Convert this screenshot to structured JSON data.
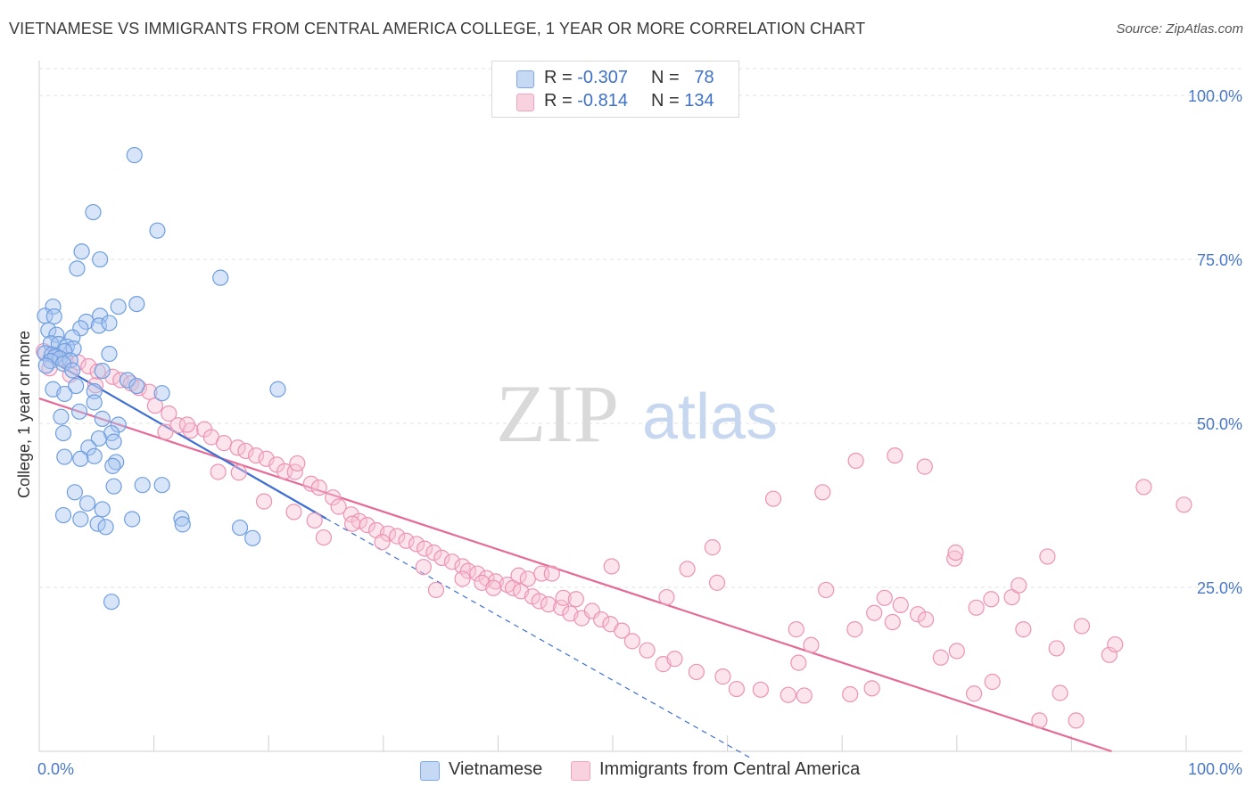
{
  "header": {
    "title": "VIETNAMESE VS IMMIGRANTS FROM CENTRAL AMERICA COLLEGE, 1 YEAR OR MORE CORRELATION CHART",
    "source": "Source: ZipAtlas.com"
  },
  "watermark": {
    "zip": "ZIP",
    "atlas": "atlas"
  },
  "legend_top": {
    "rows": [
      {
        "r_label": "R =",
        "r_value": "-0.307",
        "n_label": "N =",
        "n_value": "78",
        "color": "#7fa8e8"
      },
      {
        "r_label": "R =",
        "r_value": "-0.814",
        "n_label": "N =",
        "n_value": "134",
        "color": "#f0a3be"
      }
    ]
  },
  "legend_bottom": {
    "items": [
      {
        "label": "Vietnamese",
        "color": "#7fa8e8"
      },
      {
        "label": "Immigrants from Central America",
        "color": "#f0a3be"
      }
    ]
  },
  "colors": {
    "blue_fill": "#a9c6f0",
    "blue_stroke": "#6f9ee0",
    "blue_line": "#3f6fd1",
    "pink_fill": "#f6c4d4",
    "pink_stroke": "#ec93b3",
    "pink_line": "#e56a96",
    "grid": "#e2e2e2",
    "tick_text": "#4a78c9"
  },
  "chart_data": {
    "type": "scatter",
    "title": "VIETNAMESE VS IMMIGRANTS FROM CENTRAL AMERICA COLLEGE, 1 YEAR OR MORE CORRELATION CHART",
    "xlabel": "",
    "ylabel": "College, 1 year or more",
    "xlim": [
      0,
      100
    ],
    "ylim": [
      0,
      100
    ],
    "x_tick_labels": [
      "0.0%",
      "100.0%"
    ],
    "y_tick_labels": [
      {
        "value": 100,
        "label": "100.0%"
      },
      {
        "value": 75,
        "label": "75.0%"
      },
      {
        "value": 50,
        "label": "50.0%"
      },
      {
        "value": 25,
        "label": "25.0%"
      }
    ],
    "grid": true,
    "legend_position": "bottom",
    "series": [
      {
        "name": "Vietnamese",
        "r": -0.307,
        "n": 78,
        "trend": {
          "x": [
            0.3,
            25
          ],
          "y": [
            60.3,
            35.5
          ],
          "dashed_extension": {
            "x": [
              25,
              62
            ],
            "y": [
              35.5,
              -1
            ]
          }
        },
        "points": [
          [
            8.3,
            90.9
          ],
          [
            4.7,
            82.2
          ],
          [
            10.3,
            79.4
          ],
          [
            3.7,
            76.2
          ],
          [
            5.3,
            75
          ],
          [
            3.3,
            73.6
          ],
          [
            15.8,
            72.2
          ],
          [
            1.2,
            67.8
          ],
          [
            6.9,
            67.8
          ],
          [
            8.5,
            68.2
          ],
          [
            0.5,
            66.4
          ],
          [
            1.3,
            66.3
          ],
          [
            5.3,
            66.4
          ],
          [
            4.1,
            65.5
          ],
          [
            5.2,
            64.9
          ],
          [
            6.1,
            65.3
          ],
          [
            3.6,
            64.5
          ],
          [
            0.8,
            64.2
          ],
          [
            1.5,
            63.5
          ],
          [
            2.9,
            63.1
          ],
          [
            1.0,
            62.2
          ],
          [
            1.7,
            62.1
          ],
          [
            2.4,
            61.7
          ],
          [
            3.0,
            61.4
          ],
          [
            2.2,
            61
          ],
          [
            0.5,
            60.7
          ],
          [
            1.1,
            60.5
          ],
          [
            6.1,
            60.6
          ],
          [
            1.4,
            60.2
          ],
          [
            1.8,
            59.9
          ],
          [
            2.7,
            59.6
          ],
          [
            1.0,
            59.5
          ],
          [
            2.1,
            59.1
          ],
          [
            0.6,
            58.8
          ],
          [
            2.9,
            58.1
          ],
          [
            5.5,
            58
          ],
          [
            7.7,
            56.6
          ],
          [
            3.2,
            55.7
          ],
          [
            1.2,
            55.2
          ],
          [
            8.5,
            55.7
          ],
          [
            20.8,
            55.2
          ],
          [
            4.8,
            54.9
          ],
          [
            10.7,
            54.6
          ],
          [
            2.2,
            54.5
          ],
          [
            4.8,
            53.2
          ],
          [
            3.5,
            51.8
          ],
          [
            1.9,
            51
          ],
          [
            5.5,
            50.7
          ],
          [
            6.9,
            49.8
          ],
          [
            6.3,
            48.5
          ],
          [
            2.1,
            48.5
          ],
          [
            5.2,
            47.7
          ],
          [
            6.5,
            47.2
          ],
          [
            4.3,
            46.3
          ],
          [
            4.8,
            45
          ],
          [
            2.2,
            44.9
          ],
          [
            3.6,
            44.6
          ],
          [
            6.7,
            44.1
          ],
          [
            6.4,
            43.5
          ],
          [
            9.0,
            40.6
          ],
          [
            10.7,
            40.6
          ],
          [
            6.5,
            40.4
          ],
          [
            3.1,
            39.5
          ],
          [
            4.2,
            37.8
          ],
          [
            5.5,
            36.9
          ],
          [
            2.1,
            36
          ],
          [
            3.6,
            35.4
          ],
          [
            8.1,
            35.4
          ],
          [
            12.4,
            35.5
          ],
          [
            5.1,
            34.7
          ],
          [
            5.8,
            34.2
          ],
          [
            12.5,
            34.6
          ],
          [
            17.5,
            34.1
          ],
          [
            18.6,
            32.5
          ],
          [
            6.3,
            22.8
          ]
        ]
      },
      {
        "name": "Immigrants from Central America",
        "r": -0.814,
        "n": 134,
        "trend": {
          "x": [
            0,
            93.5
          ],
          "y": [
            53.8,
            0
          ]
        },
        "points": [
          [
            0.4,
            61
          ],
          [
            1.4,
            60.4
          ],
          [
            2.3,
            59.7
          ],
          [
            3.4,
            59.3
          ],
          [
            4.3,
            58.7
          ],
          [
            5.1,
            57.9
          ],
          [
            6.4,
            57.1
          ],
          [
            7.1,
            56.6
          ],
          [
            8.0,
            56.1
          ],
          [
            8.7,
            55.4
          ],
          [
            9.6,
            54.8
          ],
          [
            0.9,
            58.4
          ],
          [
            2.7,
            57.4
          ],
          [
            4.9,
            55.8
          ],
          [
            10.1,
            52.7
          ],
          [
            11.3,
            51.5
          ],
          [
            12.1,
            49.7
          ],
          [
            13.2,
            48.9
          ],
          [
            11.0,
            48.7
          ],
          [
            12.9,
            49.8
          ],
          [
            14.4,
            49.1
          ],
          [
            15.0,
            47.9
          ],
          [
            16.1,
            47
          ],
          [
            17.3,
            46.3
          ],
          [
            18.0,
            45.8
          ],
          [
            18.9,
            45.1
          ],
          [
            19.8,
            44.6
          ],
          [
            20.7,
            43.7
          ],
          [
            21.4,
            42.7
          ],
          [
            22.3,
            42.6
          ],
          [
            22.5,
            43.9
          ],
          [
            15.6,
            42.6
          ],
          [
            17.4,
            42.5
          ],
          [
            19.6,
            38.1
          ],
          [
            23.7,
            40.8
          ],
          [
            24.4,
            40.2
          ],
          [
            25.6,
            38.7
          ],
          [
            26.1,
            37.3
          ],
          [
            27.2,
            36.1
          ],
          [
            27.9,
            35.1
          ],
          [
            28.6,
            34.5
          ],
          [
            29.4,
            33.7
          ],
          [
            30.4,
            33.2
          ],
          [
            31.2,
            32.8
          ],
          [
            32.0,
            32.1
          ],
          [
            32.9,
            31.6
          ],
          [
            33.6,
            30.9
          ],
          [
            34.4,
            30.3
          ],
          [
            35.1,
            29.5
          ],
          [
            36.0,
            28.9
          ],
          [
            36.9,
            28.2
          ],
          [
            37.4,
            27.5
          ],
          [
            38.2,
            27.1
          ],
          [
            39.0,
            26.4
          ],
          [
            39.8,
            25.9
          ],
          [
            40.8,
            25.4
          ],
          [
            41.3,
            24.9
          ],
          [
            42.0,
            24.4
          ],
          [
            43.0,
            23.6
          ],
          [
            43.6,
            22.9
          ],
          [
            44.4,
            22.4
          ],
          [
            45.5,
            21.9
          ],
          [
            46.3,
            21
          ],
          [
            47.3,
            20.3
          ],
          [
            24.0,
            35.2
          ],
          [
            22.2,
            36.5
          ],
          [
            24.8,
            32.6
          ],
          [
            27.3,
            34.7
          ],
          [
            29.9,
            31.9
          ],
          [
            33.5,
            28.1
          ],
          [
            34.6,
            24.6
          ],
          [
            36.9,
            26.3
          ],
          [
            38.6,
            25.7
          ],
          [
            39.6,
            24.9
          ],
          [
            41.8,
            26.8
          ],
          [
            42.6,
            26.3
          ],
          [
            43.8,
            27.1
          ],
          [
            44.7,
            27.1
          ],
          [
            45.7,
            23.4
          ],
          [
            46.8,
            23.2
          ],
          [
            48.2,
            21.4
          ],
          [
            49.0,
            20.1
          ],
          [
            49.8,
            19.4
          ],
          [
            50.8,
            18.4
          ],
          [
            51.7,
            16.8
          ],
          [
            53.0,
            15.4
          ],
          [
            54.4,
            13.3
          ],
          [
            55.4,
            14.1
          ],
          [
            57.3,
            12.1
          ],
          [
            59.6,
            11.4
          ],
          [
            60.8,
            9.5
          ],
          [
            62.9,
            9.4
          ],
          [
            65.3,
            8.6
          ],
          [
            66.7,
            8.5
          ],
          [
            67.3,
            16.2
          ],
          [
            66.2,
            13.5
          ],
          [
            70.7,
            8.7
          ],
          [
            72.6,
            9.6
          ],
          [
            80.0,
            15.3
          ],
          [
            87.2,
            4.7
          ],
          [
            88.7,
            15.7
          ],
          [
            66.0,
            18.6
          ],
          [
            68.6,
            24.6
          ],
          [
            71.1,
            18.6
          ],
          [
            72.8,
            21.1
          ],
          [
            73.7,
            23.4
          ],
          [
            74.4,
            19.7
          ],
          [
            75.1,
            22.3
          ],
          [
            76.6,
            20.9
          ],
          [
            77.3,
            20.1
          ],
          [
            78.6,
            14.3
          ],
          [
            79.8,
            29.4
          ],
          [
            81.5,
            8.8
          ],
          [
            83.1,
            10.6
          ],
          [
            84.8,
            23.5
          ],
          [
            85.4,
            25.3
          ],
          [
            89.0,
            8.9
          ],
          [
            90.4,
            4.7
          ],
          [
            54.7,
            23.5
          ],
          [
            56.5,
            27.8
          ],
          [
            58.7,
            31.1
          ],
          [
            49.9,
            28.2
          ],
          [
            59.1,
            25.7
          ],
          [
            64.0,
            38.5
          ],
          [
            71.2,
            44.3
          ],
          [
            74.6,
            45.1
          ],
          [
            77.2,
            43.4
          ],
          [
            68.3,
            39.5
          ],
          [
            87.9,
            29.7
          ],
          [
            93.3,
            14.7
          ],
          [
            96.3,
            40.3
          ],
          [
            99.8,
            37.6
          ],
          [
            79.9,
            30.3
          ],
          [
            81.7,
            21.9
          ],
          [
            85.8,
            18.6
          ],
          [
            90.9,
            19.1
          ],
          [
            93.8,
            16.3
          ],
          [
            83.0,
            23.2
          ]
        ]
      }
    ]
  }
}
